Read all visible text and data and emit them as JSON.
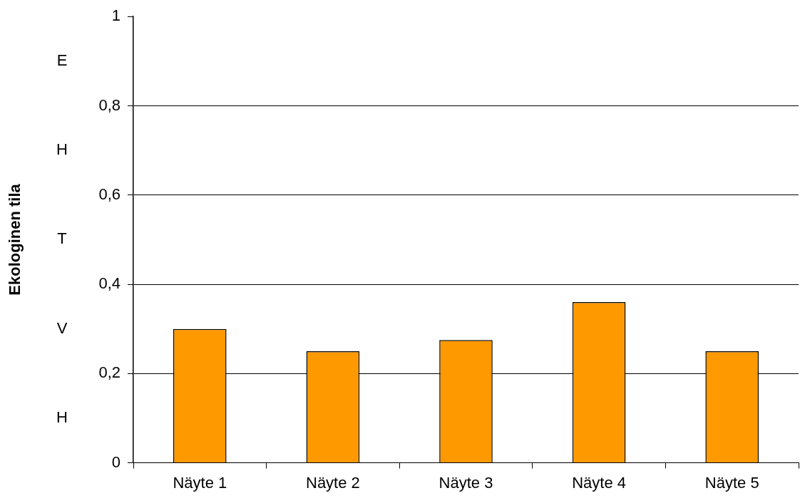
{
  "chart_data": {
    "type": "bar",
    "ylabel": "Ekologinen tila",
    "categories": [
      "Näyte 1",
      "Näyte 2",
      "Näyte 3",
      "Näyte 4",
      "Näyte 5"
    ],
    "values": [
      0.3,
      0.25,
      0.275,
      0.36,
      0.25
    ],
    "color": "#ff9900",
    "ylim": [
      0,
      1
    ],
    "yticks": [
      0,
      {
        "value": 0.2,
        "label": "0,2"
      },
      {
        "value": 0.4,
        "label": "0,4"
      },
      {
        "value": 0.6,
        "label": "0,6"
      },
      {
        "value": 0.8,
        "label": "0,8"
      },
      1
    ],
    "grid": "y",
    "legend": false,
    "annotations": [
      "E",
      "H",
      "T",
      "V",
      "H"
    ]
  }
}
